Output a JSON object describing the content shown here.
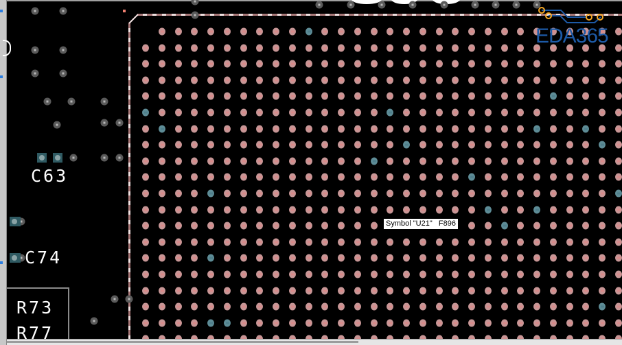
{
  "labels": {
    "c63": "C63",
    "c74": "C74",
    "r73": "R73",
    "r77": "R77"
  },
  "tooltip": {
    "text": "Symbol \"U21\"   F896"
  },
  "logo": {
    "text": "EDA365",
    "color": "#1d5aa6",
    "accent": "#f5a623"
  },
  "bga": {
    "rows": 20,
    "cols": 30,
    "pad_color": "#c79696",
    "net_pad_color": "#5e8c96",
    "highlighted_pads": [
      [
        0,
        10
      ],
      [
        4,
        25
      ],
      [
        5,
        0
      ],
      [
        5,
        15
      ],
      [
        6,
        1
      ],
      [
        6,
        24
      ],
      [
        6,
        27
      ],
      [
        7,
        16
      ],
      [
        7,
        28
      ],
      [
        8,
        14
      ],
      [
        9,
        20
      ],
      [
        10,
        4
      ],
      [
        10,
        29
      ],
      [
        11,
        21
      ],
      [
        11,
        24
      ],
      [
        12,
        22
      ],
      [
        14,
        4
      ],
      [
        17,
        28
      ],
      [
        18,
        4
      ],
      [
        18,
        5
      ]
    ]
  },
  "colors": {
    "background": "#000000",
    "via": "#5a5a5a",
    "silkscreen": "#ffffff",
    "outline": "#a87878"
  }
}
